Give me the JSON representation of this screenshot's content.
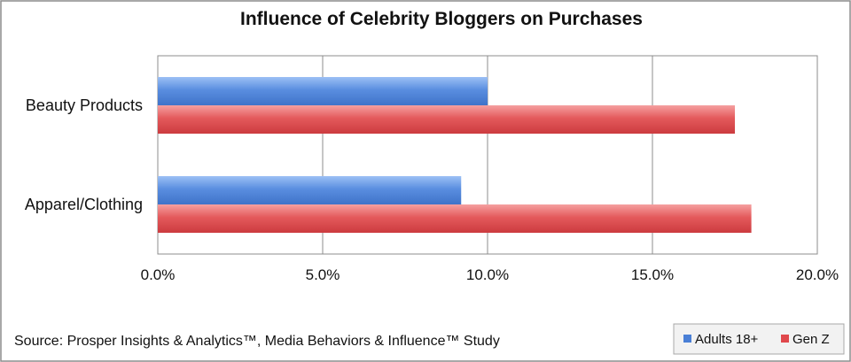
{
  "chart_data": {
    "type": "bar",
    "orientation": "horizontal",
    "title": "Influence of Celebrity Bloggers on Purchases",
    "categories": [
      "Beauty Products",
      "Apparel/Clothing"
    ],
    "series": [
      {
        "name": "Adults 18+",
        "values": [
          10.0,
          9.2
        ],
        "color": "#4a7fd6"
      },
      {
        "name": "Gen Z",
        "values": [
          17.5,
          18.0
        ],
        "color": "#e0484c"
      }
    ],
    "xlim": [
      0,
      20
    ],
    "x_ticks": [
      "0.0%",
      "5.0%",
      "10.0%",
      "15.0%",
      "20.0%"
    ],
    "grid": true,
    "legend_position": "bottom-right",
    "source": "Source: Prosper Insights & Analytics™, Media Behaviors & Influence™ Study"
  }
}
